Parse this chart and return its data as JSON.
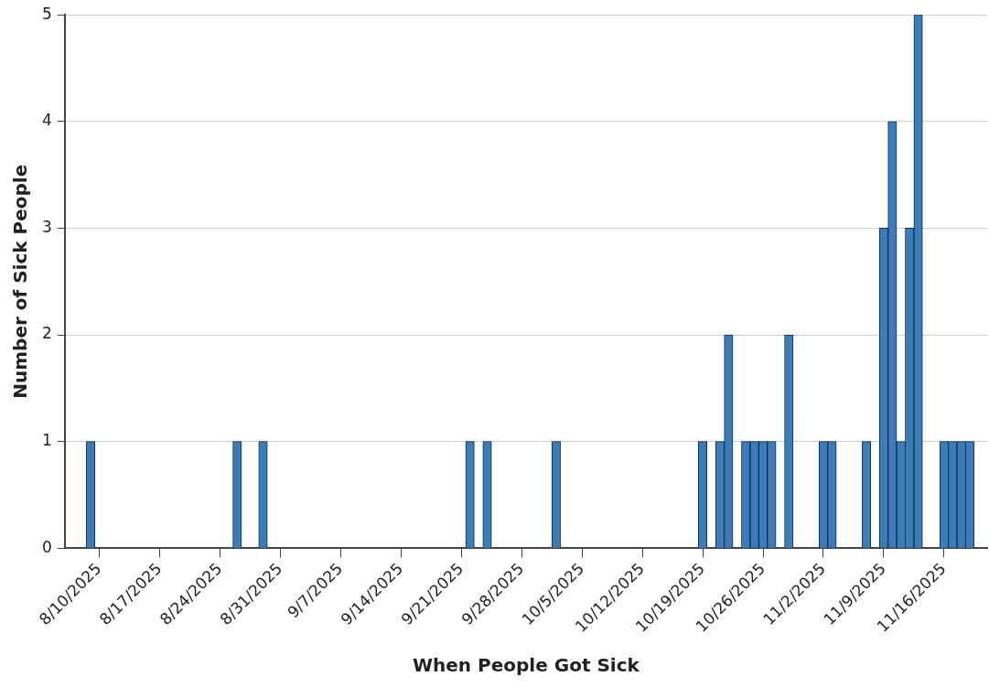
{
  "chart_data": {
    "type": "bar",
    "xlabel": "When People Got Sick",
    "ylabel": "Number of Sick People",
    "x": [
      "2025-08-09",
      "2025-08-26",
      "2025-08-29",
      "2025-09-22",
      "2025-09-24",
      "2025-10-02",
      "2025-10-19",
      "2025-10-21",
      "2025-10-22",
      "2025-10-24",
      "2025-10-25",
      "2025-10-26",
      "2025-10-27",
      "2025-10-29",
      "2025-11-02",
      "2025-11-03",
      "2025-11-07",
      "2025-11-09",
      "2025-11-10",
      "2025-11-11",
      "2025-11-12",
      "2025-11-13",
      "2025-11-16",
      "2025-11-17",
      "2025-11-18",
      "2025-11-19"
    ],
    "values": [
      1,
      1,
      1,
      1,
      1,
      1,
      1,
      1,
      2,
      1,
      1,
      1,
      1,
      2,
      1,
      1,
      1,
      3,
      4,
      1,
      3,
      5,
      1,
      1,
      1,
      1
    ],
    "color": "#3a7dbc",
    "xlim": [
      "2025-08-06",
      "2025-11-21"
    ],
    "xticks": [
      {
        "value": "2025-08-10",
        "label": "8/10/2025"
      },
      {
        "value": "2025-08-17",
        "label": "8/17/2025"
      },
      {
        "value": "2025-08-24",
        "label": "8/24/2025"
      },
      {
        "value": "2025-08-31",
        "label": "8/31/2025"
      },
      {
        "value": "2025-09-07",
        "label": "9/7/2025"
      },
      {
        "value": "2025-09-14",
        "label": "9/14/2025"
      },
      {
        "value": "2025-09-21",
        "label": "9/21/2025"
      },
      {
        "value": "2025-09-28",
        "label": "9/28/2025"
      },
      {
        "value": "2025-10-05",
        "label": "10/5/2025"
      },
      {
        "value": "2025-10-12",
        "label": "10/12/2025"
      },
      {
        "value": "2025-10-19",
        "label": "10/19/2025"
      },
      {
        "value": "2025-10-26",
        "label": "10/26/2025"
      },
      {
        "value": "2025-11-02",
        "label": "11/2/2025"
      },
      {
        "value": "2025-11-09",
        "label": "11/9/2025"
      },
      {
        "value": "2025-11-16",
        "label": "11/16/2025"
      }
    ],
    "ylim": [
      0,
      5
    ],
    "yticks": [
      0,
      1,
      2,
      3,
      4,
      5
    ],
    "grid": "y"
  }
}
